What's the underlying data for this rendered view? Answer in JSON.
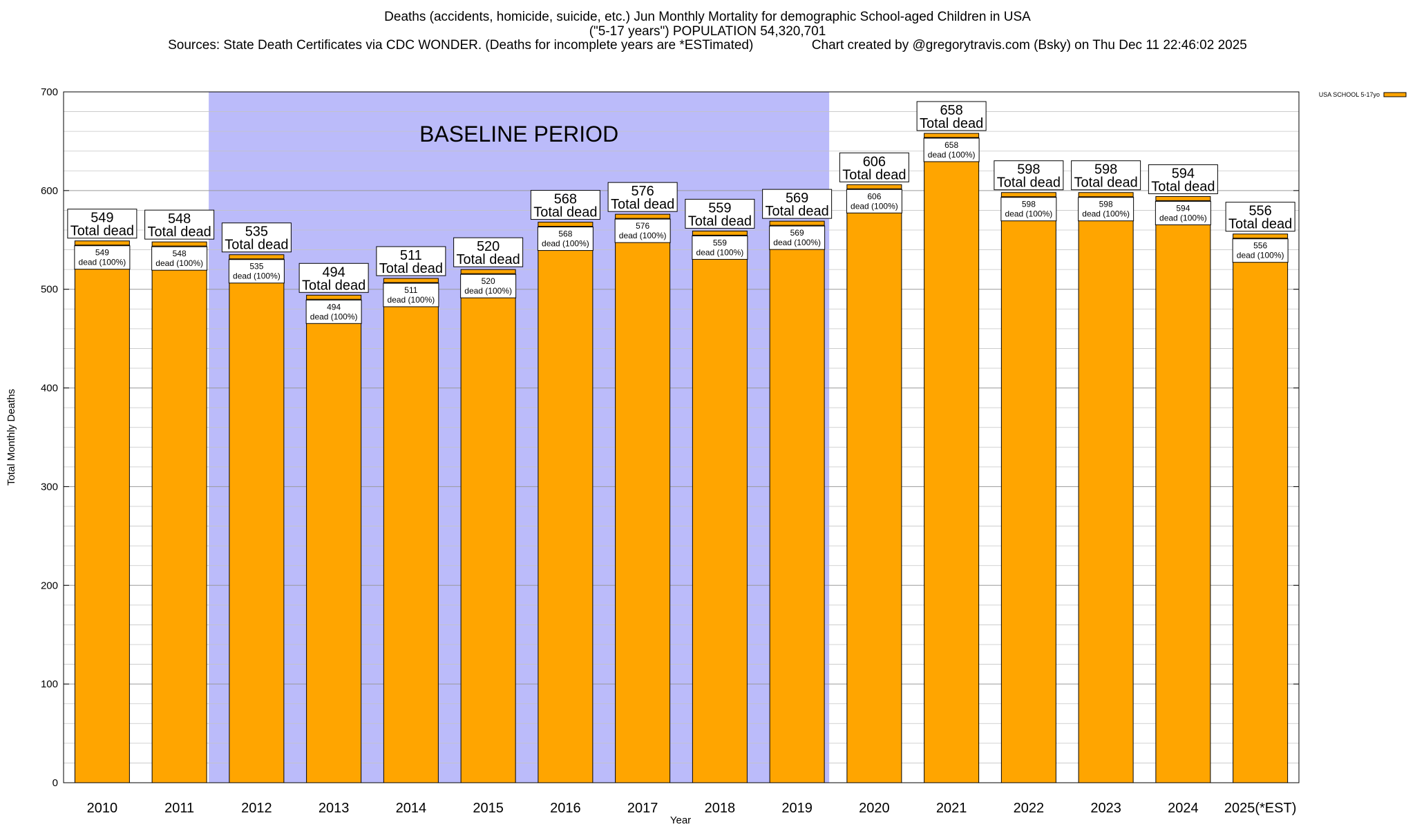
{
  "chart_data": {
    "type": "bar",
    "title_lines": [
      "Deaths (accidents, homicide, suicide, etc.) Jun Monthly Mortality for demographic School-aged Children in USA",
      "(\"5-17 years\") POPULATION 54,320,701",
      "Sources: State Death Certificates via CDC WONDER. (Deaths for incomplete years are *ESTimated)                Chart created by @gregorytravis.com (Bsky) on Thu Dec 11 22:46:02 2025"
    ],
    "xlabel": "Year",
    "ylabel": "Total Monthly Deaths",
    "ylim": [
      0,
      700
    ],
    "yticks": [
      0,
      100,
      200,
      300,
      400,
      500,
      600,
      700
    ],
    "y_minor_step": 20,
    "grid": true,
    "legend": {
      "position": "top-right",
      "label": "USA SCHOOL 5-17yo"
    },
    "baseline_region": {
      "label": "BASELINE PERIOD",
      "from_category": "2012",
      "to_category": "2019",
      "color": "#bbbbfa"
    },
    "bar_color": "#ffa500",
    "top_label_suffix": "Total dead",
    "inner_label_suffix": "dead (100%)",
    "categories": [
      "2010",
      "2011",
      "2012",
      "2013",
      "2014",
      "2015",
      "2016",
      "2017",
      "2018",
      "2019",
      "2020",
      "2021",
      "2022",
      "2023",
      "2024",
      "2025(*EST)"
    ],
    "series": [
      {
        "name": "USA SCHOOL 5-17yo",
        "values": [
          549,
          548,
          535,
          494,
          511,
          520,
          568,
          576,
          559,
          569,
          606,
          658,
          598,
          598,
          594,
          556
        ]
      }
    ]
  }
}
